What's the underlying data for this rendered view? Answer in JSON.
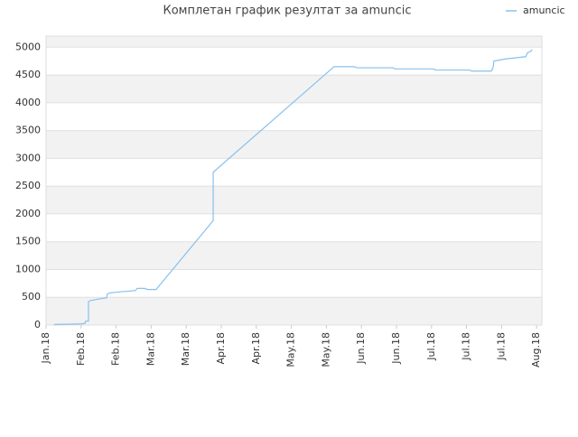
{
  "chart_data": {
    "type": "line",
    "title": "Комплетан график резултат за amuncic",
    "x": [
      0.23,
      1.01,
      1.11,
      1.13,
      1.21,
      1.21,
      1.26,
      1.52,
      1.73,
      1.75,
      1.83,
      2.16,
      2.55,
      2.6,
      2.81,
      2.89,
      3.14,
      4.77,
      4.77,
      8.22,
      8.79,
      8.87,
      9.9,
      9.95,
      11.06,
      11.11,
      12.09,
      12.14,
      12.71,
      12.76,
      12.78,
      13.12,
      13.69,
      13.74,
      13.84,
      13.87
    ],
    "series": [
      {
        "name": "amuncic",
        "color": "#88c0ee",
        "values": [
          10,
          20,
          30,
          70,
          70,
          420,
          440,
          470,
          490,
          560,
          580,
          600,
          620,
          660,
          660,
          640,
          640,
          1880,
          2750,
          4650,
          4650,
          4630,
          4630,
          4610,
          4610,
          4590,
          4590,
          4570,
          4570,
          4640,
          4750,
          4790,
          4830,
          4900,
          4930,
          4960
        ]
      }
    ],
    "xlim": [
      0,
      14.15
    ],
    "xticks": [
      {
        "value": 0,
        "label": "Jan.18"
      },
      {
        "value": 1,
        "label": "Feb.18"
      },
      {
        "value": 2,
        "label": "Feb.18"
      },
      {
        "value": 3,
        "label": "Mar.18"
      },
      {
        "value": 4,
        "label": "Mar.18"
      },
      {
        "value": 5,
        "label": "Apr.18"
      },
      {
        "value": 6,
        "label": "Apr.18"
      },
      {
        "value": 7,
        "label": "May.18"
      },
      {
        "value": 8,
        "label": "May.18"
      },
      {
        "value": 9,
        "label": "Jun.18"
      },
      {
        "value": 10,
        "label": "Jun.18"
      },
      {
        "value": 11,
        "label": "Jul.18"
      },
      {
        "value": 12,
        "label": "Jul.18"
      },
      {
        "value": 13,
        "label": "Jul.18"
      },
      {
        "value": 14,
        "label": "Aug.18"
      }
    ],
    "ylim": [
      0,
      5200
    ],
    "yticks": [
      0,
      500,
      1000,
      1500,
      2000,
      2500,
      3000,
      3500,
      4000,
      4500,
      5000
    ],
    "grid": true,
    "legend": "top-right"
  }
}
